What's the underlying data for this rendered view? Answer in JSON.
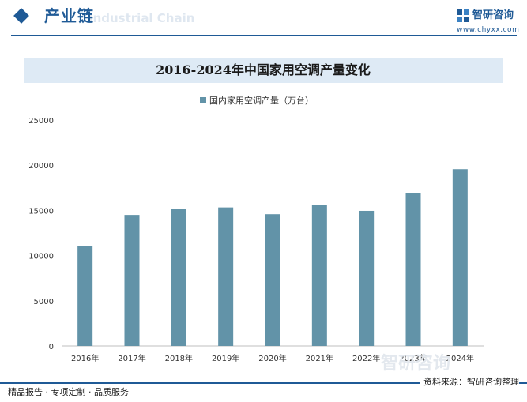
{
  "header": {
    "title": "产业链",
    "watermark": "Industrial Chain",
    "brand_name": "智研咨询",
    "brand_url": "www.chyxx.com"
  },
  "footer": {
    "left": "精品报告 · 专项定制 · 品质服务",
    "source": "资料来源：智研咨询整理",
    "watermark": "智研咨询"
  },
  "colors": {
    "accent": "#1f5a96",
    "bar": "#6293a8",
    "title_band": "#deeaf5"
  },
  "chart_data": {
    "type": "bar",
    "title": "2016-2024年中国家用空调产量变化",
    "categories": [
      "2016年",
      "2017年",
      "2018年",
      "2019年",
      "2020年",
      "2021年",
      "2022年",
      "2023年",
      "2024年"
    ],
    "series": [
      {
        "name": "国内家用空调产量（万台）",
        "values": [
          11050,
          14500,
          15150,
          15330,
          14580,
          15600,
          14950,
          16870,
          19560
        ]
      }
    ],
    "ylim": [
      0,
      25000
    ],
    "yticks": [
      0,
      5000,
      10000,
      15000,
      20000,
      25000
    ],
    "legend": "top-center",
    "grid": false
  }
}
